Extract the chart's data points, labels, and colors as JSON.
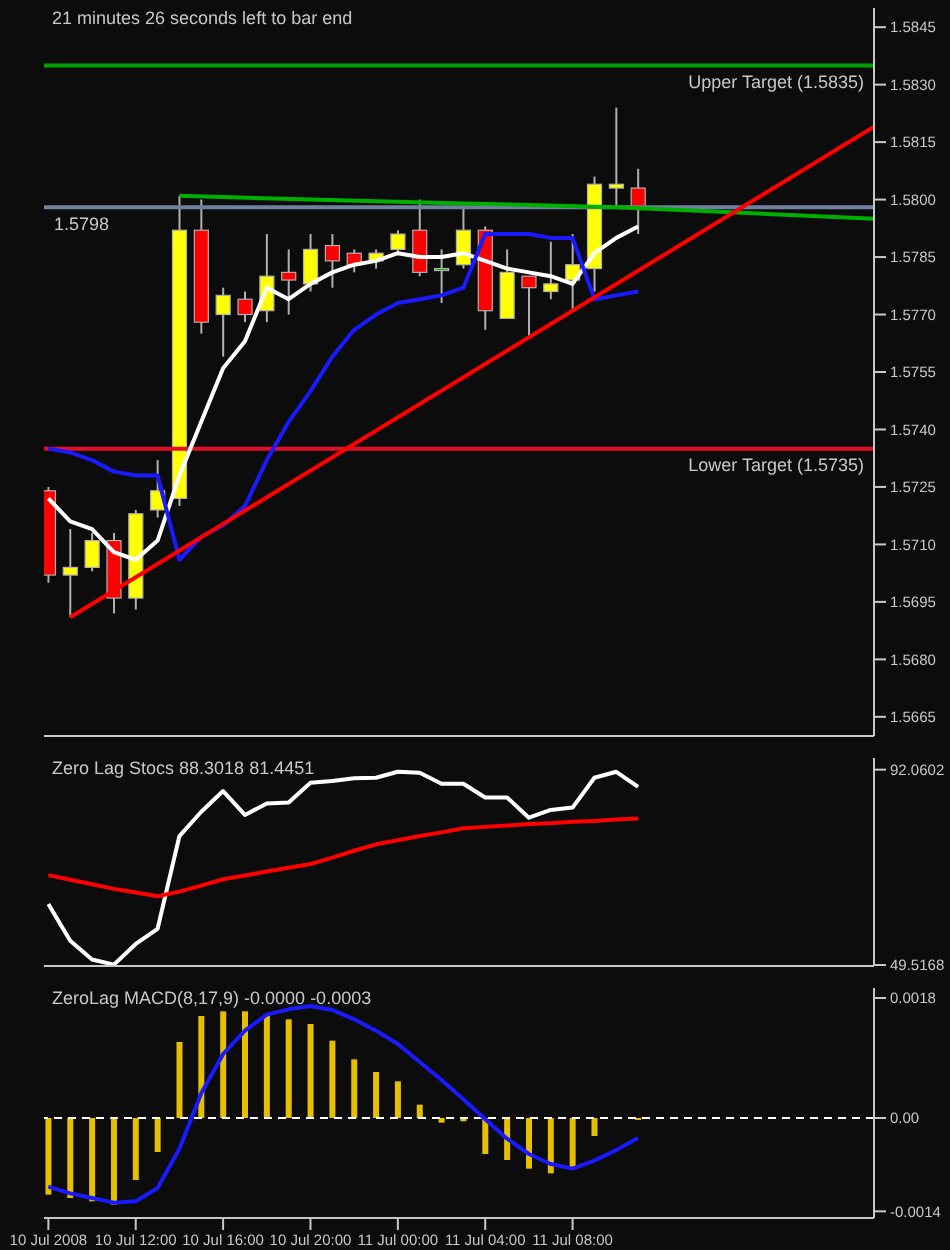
{
  "chart_data": [
    {
      "type": "candlestick",
      "annotations": [
        "21 minutes 26 seconds left to bar end"
      ],
      "x": [
        "2008-07-10T08:00",
        "2008-07-10T09:00",
        "2008-07-10T10:00",
        "2008-07-10T11:00",
        "2008-07-10T12:00",
        "2008-07-10T13:00",
        "2008-07-10T14:00",
        "2008-07-10T15:00",
        "2008-07-10T16:00",
        "2008-07-10T17:00",
        "2008-07-10T18:00",
        "2008-07-10T19:00",
        "2008-07-10T20:00",
        "2008-07-10T21:00",
        "2008-07-10T22:00",
        "2008-07-10T23:00",
        "2008-07-11T00:00",
        "2008-07-11T01:00",
        "2008-07-11T02:00",
        "2008-07-11T03:00",
        "2008-07-11T04:00",
        "2008-07-11T05:00",
        "2008-07-11T06:00",
        "2008-07-11T07:00",
        "2008-07-11T08:00",
        "2008-07-11T09:00",
        "2008-07-11T10:00",
        "2008-07-11T11:00"
      ],
      "ohlc": [
        [
          1.5724,
          1.5725,
          1.57,
          1.5702
        ],
        [
          1.5702,
          1.5714,
          1.5691,
          1.5704
        ],
        [
          1.5704,
          1.5713,
          1.5703,
          1.5711
        ],
        [
          1.5711,
          1.5713,
          1.5692,
          1.5696
        ],
        [
          1.5696,
          1.5719,
          1.5693,
          1.5718
        ],
        [
          1.5719,
          1.5732,
          1.5717,
          1.5724
        ],
        [
          1.5722,
          1.5801,
          1.572,
          1.5792
        ],
        [
          1.5792,
          1.58,
          1.5765,
          1.5768
        ],
        [
          1.577,
          1.5777,
          1.5759,
          1.5775
        ],
        [
          1.5774,
          1.5776,
          1.5768,
          1.577
        ],
        [
          1.5771,
          1.5791,
          1.5768,
          1.578
        ],
        [
          1.5781,
          1.5787,
          1.577,
          1.5779
        ],
        [
          1.5778,
          1.5791,
          1.5776,
          1.5787
        ],
        [
          1.5788,
          1.5791,
          1.5777,
          1.5784
        ],
        [
          1.5786,
          1.5787,
          1.5781,
          1.5783
        ],
        [
          1.5784,
          1.5787,
          1.5782,
          1.5786
        ],
        [
          1.5787,
          1.5792,
          1.5786,
          1.5791
        ],
        [
          1.5792,
          1.58,
          1.578,
          1.5781
        ],
        [
          1.5782,
          1.5787,
          1.5773,
          1.5782
        ],
        [
          1.5783,
          1.5798,
          1.5782,
          1.5792
        ],
        [
          1.5792,
          1.5793,
          1.5766,
          1.5771
        ],
        [
          1.5769,
          1.5787,
          1.5769,
          1.5781
        ],
        [
          1.578,
          1.578,
          1.5764,
          1.5777
        ],
        [
          1.5776,
          1.5789,
          1.5774,
          1.5778
        ],
        [
          1.5779,
          1.5791,
          1.5771,
          1.5783
        ],
        [
          1.5782,
          1.5806,
          1.5776,
          1.5804
        ],
        [
          1.5803,
          1.5824,
          1.5798,
          1.5804
        ],
        [
          1.5803,
          1.5808,
          1.5791,
          1.5798
        ]
      ],
      "colors": [
        "#ff0000",
        "#ffff00",
        "#ffff00",
        "#ff0000",
        "#ffff00",
        "#ffff00",
        "#ffff00",
        "#ff0000",
        "#ffff00",
        "#ff0000",
        "#ffff00",
        "#ff0000",
        "#ffff00",
        "#ff0000",
        "#ff0000",
        "#ffff00",
        "#ffff00",
        "#ff0000",
        "#00c000",
        "#ffff00",
        "#ff0000",
        "#ffff00",
        "#ff0000",
        "#ffff00",
        "#ffff00",
        "#ffff00",
        "#ffff00",
        "#ff0000"
      ],
      "series": [
        {
          "type": "line",
          "color": "#ffffff",
          "values": [
            1.5722,
            1.5716,
            1.5714,
            1.5708,
            1.5706,
            1.5711,
            1.5728,
            1.5742,
            1.5756,
            1.5763,
            1.5777,
            1.5774,
            1.5778,
            1.5781,
            1.5783,
            1.5784,
            1.5786,
            1.5785,
            1.5785,
            1.5786,
            1.5784,
            1.5782,
            1.5781,
            1.578,
            1.5778,
            1.5786,
            1.579,
            1.5793
          ]
        },
        {
          "type": "line",
          "color": "#1a1aff",
          "values": [
            1.5735,
            1.5734,
            1.5732,
            1.5729,
            1.5728,
            1.5728,
            1.5706,
            1.5712,
            1.5715,
            1.572,
            1.5732,
            1.5742,
            1.575,
            1.5759,
            1.5766,
            1.577,
            1.5773,
            1.5774,
            1.5775,
            1.5777,
            1.5791,
            1.5791,
            1.5791,
            1.579,
            1.579,
            1.5774,
            1.5775,
            1.5776
          ]
        },
        {
          "type": "line",
          "color": "#00b000",
          "x": [
            "2008-07-10T14:00",
            "2008-07-10T20:00",
            "2008-07-11T03:00",
            "2008-07-11T10:00",
            "2008-07-11T14:00",
            "2008-07-11T21:48"
          ],
          "values": [
            1.5801,
            1.58,
            1.5799,
            1.5798,
            1.5797,
            1.5795
          ]
        },
        {
          "type": "line",
          "color": "#ff0000",
          "x": [
            "2008-07-10T09:00",
            "2008-07-11T21:48"
          ],
          "values": [
            1.5691,
            1.5819
          ]
        }
      ],
      "xlim": [
        "2008-07-10T07:48",
        "2008-07-11T21:48"
      ],
      "ylim": [
        1.566,
        1.585
      ],
      "yticks": [
        1.5665,
        {
          "value": 1.568,
          "label": "1.5680"
        },
        1.5695,
        {
          "value": 1.571,
          "label": "1.5710"
        },
        1.5725,
        {
          "value": 1.574,
          "label": "1.5740"
        },
        1.5755,
        {
          "value": 1.577,
          "label": "1.5770"
        },
        1.5785,
        {
          "value": 1.58,
          "label": "1.5800"
        },
        1.5815,
        {
          "value": 1.583,
          "label": "1.5830"
        },
        1.5845
      ],
      "ref_lines": [
        {
          "axis": "y",
          "value": 1.5835,
          "label": "Upper Target (1.5835)",
          "color": "#00a000"
        },
        {
          "axis": "y",
          "value": 1.5735,
          "label": "Lower Target (1.5735)",
          "color": "#e0102a"
        },
        {
          "axis": "y",
          "value": 1.5798,
          "label": "1.5798",
          "color": "#7080a0"
        }
      ],
      "tick_labels": "y"
    },
    {
      "type": "line",
      "title": "Zero Lag Stocs 88.3018 81.4451",
      "x": [
        "2008-07-10T08:00",
        "2008-07-10T09:00",
        "2008-07-10T10:00",
        "2008-07-10T11:00",
        "2008-07-10T12:00",
        "2008-07-10T13:00",
        "2008-07-10T14:00",
        "2008-07-10T15:00",
        "2008-07-10T16:00",
        "2008-07-10T17:00",
        "2008-07-10T18:00",
        "2008-07-10T19:00",
        "2008-07-10T20:00",
        "2008-07-10T21:00",
        "2008-07-10T22:00",
        "2008-07-10T23:00",
        "2008-07-11T00:00",
        "2008-07-11T01:00",
        "2008-07-11T02:00",
        "2008-07-11T03:00",
        "2008-07-11T04:00",
        "2008-07-11T05:00",
        "2008-07-11T06:00",
        "2008-07-11T07:00",
        "2008-07-11T08:00",
        "2008-07-11T09:00",
        "2008-07-11T10:00",
        "2008-07-11T11:00"
      ],
      "series": [
        {
          "type": "line",
          "color": "#ffffff",
          "values": [
            62.8,
            54.8,
            50.7,
            49.6,
            54.1,
            57.4,
            77.6,
            82.9,
            87.4,
            82.2,
            84.7,
            84.9,
            89.2,
            89.6,
            90.2,
            90.3,
            91.6,
            91.4,
            89,
            89,
            86,
            86,
            81.6,
            83.3,
            83.8,
            90.3,
            91.6,
            88.3018
          ]
        },
        {
          "type": "line",
          "color": "#ff0000",
          "values": [
            69.1,
            68.1,
            67.1,
            66.1,
            65.3,
            64.5,
            65.5,
            66.8,
            68.2,
            69,
            69.9,
            70.7,
            71.5,
            72.9,
            74.4,
            75.8,
            76.7,
            77.6,
            78.4,
            79.3,
            79.6,
            79.9,
            80.2,
            80.4,
            80.7,
            80.9,
            81.2,
            81.4451
          ]
        }
      ],
      "xlim": [
        "2008-07-10T07:48",
        "2008-07-11T21:48"
      ],
      "ylim": [
        49.3,
        94.6
      ],
      "yticks": [
        92.0602,
        49.5168
      ],
      "tick_labels": "y"
    },
    {
      "type": "bar",
      "title": "ZeroLag MACD(8,17,9) -0.0000 -0.0003",
      "x": [
        "2008-07-10T08:00",
        "2008-07-10T09:00",
        "2008-07-10T10:00",
        "2008-07-10T11:00",
        "2008-07-10T12:00",
        "2008-07-10T13:00",
        "2008-07-10T14:00",
        "2008-07-10T15:00",
        "2008-07-10T16:00",
        "2008-07-10T17:00",
        "2008-07-10T18:00",
        "2008-07-10T19:00",
        "2008-07-10T20:00",
        "2008-07-10T21:00",
        "2008-07-10T22:00",
        "2008-07-10T23:00",
        "2008-07-11T00:00",
        "2008-07-11T01:00",
        "2008-07-11T02:00",
        "2008-07-11T03:00",
        "2008-07-11T04:00",
        "2008-07-11T05:00",
        "2008-07-11T06:00",
        "2008-07-11T07:00",
        "2008-07-11T08:00",
        "2008-07-11T09:00",
        "2008-07-11T10:00",
        "2008-07-11T11:00"
      ],
      "series": [
        {
          "type": "bar",
          "color": "#e6c000",
          "values": [
            -0.00115,
            -0.0012,
            -0.00125,
            -0.0013,
            -0.00093,
            -0.00051,
            0.00114,
            0.00153,
            0.0016,
            0.0016,
            0.00155,
            0.00148,
            0.00141,
            0.00116,
            0.00088,
            0.00069,
            0.00055,
            0.0002,
            -7e-05,
            -5e-05,
            -0.00054,
            -0.00063,
            -0.00076,
            -0.00083,
            -0.00076,
            -0.00027,
            null,
            -3e-05
          ]
        },
        {
          "type": "line",
          "color": "#1a1aff",
          "values": [
            -0.00103,
            -0.00113,
            -0.0012,
            -0.00127,
            -0.00125,
            -0.00105,
            -0.00046,
            0.00037,
            0.00096,
            0.00131,
            0.00155,
            0.00163,
            0.00168,
            0.00162,
            0.00148,
            0.00131,
            0.00111,
            0.00084,
            0.00057,
            0.00028,
            -2e-05,
            -0.00031,
            -0.00054,
            -0.00069,
            -0.00076,
            -0.00064,
            -0.00048,
            -0.0003
          ]
        }
      ],
      "xlim": [
        "2008-07-10T07:48",
        "2008-07-11T21:48"
      ],
      "ylim": [
        -0.0015,
        0.00195
      ],
      "yticks": [
        0.0018,
        {
          "value": 0,
          "label": "0.00"
        },
        -0.0014
      ],
      "xticks": [
        {
          "value": "2008-07-10T08:00",
          "label": "10 Jul 2008"
        },
        {
          "value": "2008-07-10T12:00",
          "label": "10 Jul 12:00"
        },
        {
          "value": "2008-07-10T16:00",
          "label": "10 Jul 16:00"
        },
        {
          "value": "2008-07-10T20:00",
          "label": "10 Jul 20:00"
        },
        {
          "value": "2008-07-11T00:00",
          "label": "11 Jul 00:00"
        },
        {
          "value": "2008-07-11T04:00",
          "label": "11 Jul 04:00"
        },
        {
          "value": "2008-07-11T08:00",
          "label": "11 Jul 08:00"
        }
      ],
      "ref_lines": [
        {
          "axis": "y",
          "value": 0,
          "color": "#ffffff",
          "line_style": "dashed"
        }
      ]
    }
  ]
}
